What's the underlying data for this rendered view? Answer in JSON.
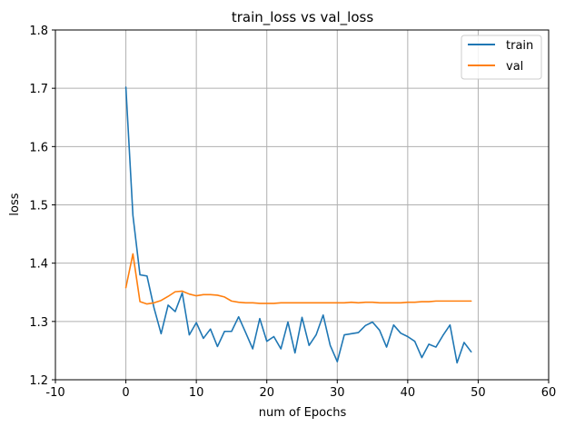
{
  "chart_data": {
    "type": "line",
    "title": "train_loss vs val_loss",
    "xlabel": "num of Epochs",
    "ylabel": "loss",
    "xlim": [
      -10,
      60
    ],
    "ylim": [
      1.2,
      1.8
    ],
    "xticks": [
      "-10",
      "0",
      "10",
      "20",
      "30",
      "40",
      "50",
      "60"
    ],
    "yticks": [
      "1.2",
      "1.3",
      "1.4",
      "1.5",
      "1.6",
      "1.7",
      "1.8"
    ],
    "grid": true,
    "legend_position": "top-right",
    "series": [
      {
        "name": "train",
        "color": "#1f77b4",
        "x": [
          0,
          1,
          2,
          3,
          4,
          5,
          6,
          7,
          8,
          9,
          10,
          11,
          12,
          13,
          14,
          15,
          16,
          17,
          18,
          19,
          20,
          21,
          22,
          23,
          24,
          25,
          26,
          27,
          28,
          29,
          30,
          31,
          32,
          33,
          34,
          35,
          36,
          37,
          38,
          39,
          40,
          41,
          42,
          43,
          44,
          45,
          46,
          47,
          48,
          49
        ],
        "values": [
          1.702,
          1.482,
          1.38,
          1.378,
          1.323,
          1.279,
          1.328,
          1.317,
          1.349,
          1.277,
          1.298,
          1.271,
          1.287,
          1.257,
          1.283,
          1.283,
          1.308,
          1.281,
          1.253,
          1.305,
          1.266,
          1.274,
          1.253,
          1.299,
          1.246,
          1.307,
          1.259,
          1.277,
          1.311,
          1.259,
          1.231,
          1.277,
          1.279,
          1.281,
          1.293,
          1.299,
          1.285,
          1.256,
          1.294,
          1.28,
          1.274,
          1.266,
          1.238,
          1.261,
          1.256,
          1.276,
          1.294,
          1.229,
          1.264,
          1.248
        ]
      },
      {
        "name": "val",
        "color": "#ff7f0e",
        "x": [
          0,
          1,
          2,
          3,
          4,
          5,
          6,
          7,
          8,
          9,
          10,
          11,
          12,
          13,
          14,
          15,
          16,
          17,
          18,
          19,
          20,
          21,
          22,
          23,
          24,
          25,
          26,
          27,
          28,
          29,
          30,
          31,
          32,
          33,
          34,
          35,
          36,
          37,
          38,
          39,
          40,
          41,
          42,
          43,
          44,
          45,
          46,
          47,
          48,
          49
        ],
        "values": [
          1.358,
          1.416,
          1.334,
          1.33,
          1.332,
          1.336,
          1.343,
          1.351,
          1.352,
          1.347,
          1.344,
          1.346,
          1.346,
          1.345,
          1.342,
          1.335,
          1.333,
          1.332,
          1.332,
          1.331,
          1.331,
          1.331,
          1.332,
          1.332,
          1.332,
          1.332,
          1.332,
          1.332,
          1.332,
          1.332,
          1.332,
          1.332,
          1.333,
          1.332,
          1.333,
          1.333,
          1.332,
          1.332,
          1.332,
          1.332,
          1.333,
          1.333,
          1.334,
          1.334,
          1.335,
          1.335,
          1.335,
          1.335,
          1.335,
          1.335
        ]
      }
    ],
    "colors": {
      "grid": "#b0b0b0",
      "axes": "#000000",
      "legend_border": "#cccccc"
    }
  }
}
